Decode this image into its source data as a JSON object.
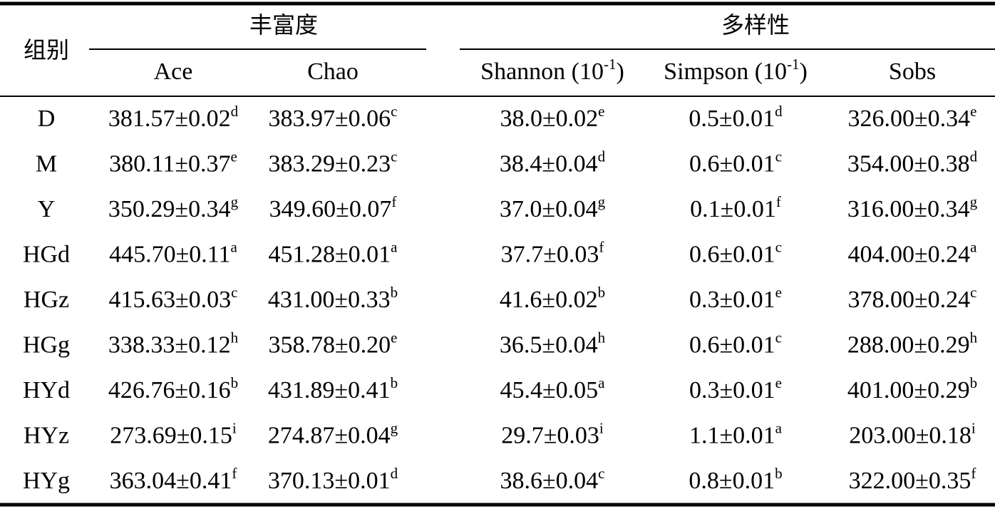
{
  "header": {
    "group_label": "组别",
    "groups": [
      {
        "label": "丰富度"
      },
      {
        "label": "多样性"
      }
    ],
    "columns": [
      {
        "text": "Ace"
      },
      {
        "text": "Chao"
      },
      {
        "text": "Shannon (10",
        "sup": "-1",
        "tail": ")"
      },
      {
        "text": "Simpson (10",
        "sup": "-1",
        "tail": ")"
      },
      {
        "text": "Sobs"
      }
    ]
  },
  "rows": [
    {
      "group": "D",
      "cells": [
        {
          "text": "381.57±0.02",
          "sup": "d"
        },
        {
          "text": "383.97±0.06",
          "sup": "c"
        },
        {
          "text": "38.0±0.02",
          "sup": "e"
        },
        {
          "text": "0.5±0.01",
          "sup": "d"
        },
        {
          "text": "326.00±0.34",
          "sup": "e"
        }
      ]
    },
    {
      "group": "M",
      "cells": [
        {
          "text": "380.11±0.37",
          "sup": "e"
        },
        {
          "text": "383.29±0.23",
          "sup": "c"
        },
        {
          "text": "38.4±0.04",
          "sup": "d"
        },
        {
          "text": "0.6±0.01",
          "sup": "c"
        },
        {
          "text": "354.00±0.38",
          "sup": "d"
        }
      ]
    },
    {
      "group": "Y",
      "cells": [
        {
          "text": "350.29±0.34",
          "sup": "g"
        },
        {
          "text": "349.60±0.07",
          "sup": "f"
        },
        {
          "text": "37.0±0.04",
          "sup": "g"
        },
        {
          "text": "0.1±0.01",
          "sup": "f"
        },
        {
          "text": "316.00±0.34",
          "sup": "g"
        }
      ]
    },
    {
      "group": "HGd",
      "cells": [
        {
          "text": "445.70±0.11",
          "sup": "a"
        },
        {
          "text": "451.28±0.01",
          "sup": "a"
        },
        {
          "text": "37.7±0.03",
          "sup": "f"
        },
        {
          "text": "0.6±0.01",
          "sup": "c"
        },
        {
          "text": "404.00±0.24",
          "sup": "a"
        }
      ]
    },
    {
      "group": "HGz",
      "cells": [
        {
          "text": "415.63±0.03",
          "sup": "c"
        },
        {
          "text": "431.00±0.33",
          "sup": "b"
        },
        {
          "text": "41.6±0.02",
          "sup": "b"
        },
        {
          "text": "0.3±0.01",
          "sup": "e"
        },
        {
          "text": "378.00±0.24",
          "sup": "c"
        }
      ]
    },
    {
      "group": "HGg",
      "cells": [
        {
          "text": "338.33±0.12",
          "sup": "h"
        },
        {
          "text": "358.78±0.20",
          "sup": "e"
        },
        {
          "text": "36.5±0.04",
          "sup": "h"
        },
        {
          "text": "0.6±0.01",
          "sup": "c"
        },
        {
          "text": "288.00±0.29",
          "sup": "h"
        }
      ]
    },
    {
      "group": "HYd",
      "cells": [
        {
          "text": "426.76±0.16",
          "sup": "b"
        },
        {
          "text": "431.89±0.41",
          "sup": "b"
        },
        {
          "text": "45.4±0.05",
          "sup": "a"
        },
        {
          "text": "0.3±0.01",
          "sup": "e"
        },
        {
          "text": "401.00±0.29",
          "sup": "b"
        }
      ]
    },
    {
      "group": "HYz",
      "cells": [
        {
          "text": "273.69±0.15",
          "sup": "i"
        },
        {
          "text": "274.87±0.04",
          "sup": "g"
        },
        {
          "text": "29.7±0.03",
          "sup": "i"
        },
        {
          "text": "1.1±0.01",
          "sup": "a"
        },
        {
          "text": "203.00±0.18",
          "sup": "i"
        }
      ]
    },
    {
      "group": "HYg",
      "cells": [
        {
          "text": "363.04±0.41",
          "sup": "f"
        },
        {
          "text": "370.13±0.01",
          "sup": "d"
        },
        {
          "text": "38.6±0.04",
          "sup": "c"
        },
        {
          "text": "0.8±0.01",
          "sup": "b"
        },
        {
          "text": "322.00±0.35",
          "sup": "f"
        }
      ]
    }
  ]
}
